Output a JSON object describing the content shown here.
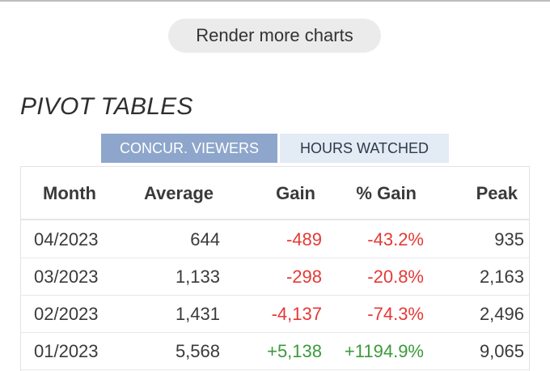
{
  "render_more_label": "Render more charts",
  "section_title": "PIVOT TABLES",
  "tabs": [
    {
      "label": "CONCUR. VIEWERS",
      "active": true
    },
    {
      "label": "HOURS WATCHED",
      "active": false
    }
  ],
  "table": {
    "headers": {
      "month": "Month",
      "average": "Average",
      "gain": "Gain",
      "pct_gain": "% Gain",
      "peak": "Peak"
    },
    "rows": [
      {
        "month": "04/2023",
        "average": "644",
        "gain": "-489",
        "pct_gain": "-43.2%",
        "peak": "935"
      },
      {
        "month": "03/2023",
        "average": "1,133",
        "gain": "-298",
        "pct_gain": "-20.8%",
        "peak": "2,163"
      },
      {
        "month": "02/2023",
        "average": "1,431",
        "gain": "-4,137",
        "pct_gain": "-74.3%",
        "peak": "2,496"
      },
      {
        "month": "01/2023",
        "average": "5,568",
        "gain": "+5,138",
        "pct_gain": "+1194.9%",
        "peak": "9,065"
      }
    ]
  },
  "colors": {
    "negative": "#e53935",
    "positive": "#3b9a3b",
    "tab_active_bg": "#8ea6cc",
    "tab_inactive_bg": "#e3ebf5"
  }
}
